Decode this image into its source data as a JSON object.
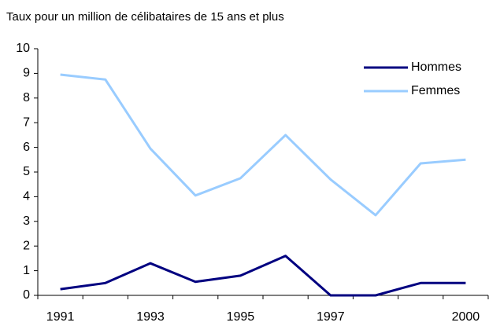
{
  "chart_data": {
    "type": "line",
    "title": "Taux  pour un million de célibataires de 15 ans et plus",
    "categories": [
      "1991",
      null,
      "1993",
      null,
      "1995",
      null,
      "1997",
      null,
      null,
      "2000"
    ],
    "series": [
      {
        "name": "Hommes",
        "color": "#000080",
        "values": [
          0.25,
          0.5,
          1.3,
          0.55,
          0.8,
          1.6,
          0,
          0,
          0.5,
          0.5
        ]
      },
      {
        "name": "Femmes",
        "color": "#99ccff",
        "values": [
          8.95,
          8.75,
          5.95,
          4.05,
          4.75,
          6.5,
          4.7,
          3.25,
          5.35,
          5.5
        ]
      }
    ],
    "ylim": [
      0,
      10
    ],
    "yticks": [
      0,
      1,
      2,
      3,
      4,
      5,
      6,
      7,
      8,
      9,
      10
    ],
    "legend": "upper right",
    "grid": false
  }
}
